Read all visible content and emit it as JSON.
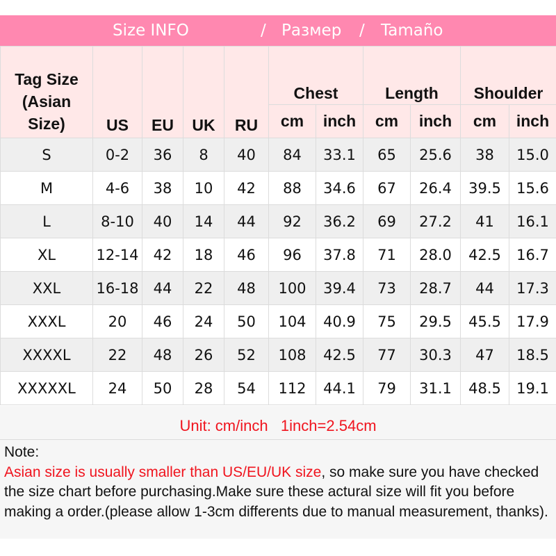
{
  "banner": {
    "title": "Size INFO",
    "sep1": "/",
    "ru": "Размер",
    "sep2": "/",
    "es": "Tamaño",
    "color": "#ff88b0"
  },
  "header": {
    "tag_size": [
      "Tag Size",
      "(Asian",
      "Size)"
    ],
    "us": "US",
    "eu": "EU",
    "uk": "UK",
    "ru": "RU",
    "chest": "Chest",
    "length": "Length",
    "shoulder": "Shoulder",
    "cm": "cm",
    "inch": "inch"
  },
  "rows": [
    [
      "S",
      "0-2",
      "36",
      "8",
      "40",
      "84",
      "33.1",
      "65",
      "25.6",
      "38",
      "15.0"
    ],
    [
      "M",
      "4-6",
      "38",
      "10",
      "42",
      "88",
      "34.6",
      "67",
      "26.4",
      "39.5",
      "15.6"
    ],
    [
      "L",
      "8-10",
      "40",
      "14",
      "44",
      "92",
      "36.2",
      "69",
      "27.2",
      "41",
      "16.1"
    ],
    [
      "XL",
      "12-14",
      "42",
      "18",
      "46",
      "96",
      "37.8",
      "71",
      "28.0",
      "42.5",
      "16.7"
    ],
    [
      "XXL",
      "16-18",
      "44",
      "22",
      "48",
      "100",
      "39.4",
      "73",
      "28.7",
      "44",
      "17.3"
    ],
    [
      "XXXL",
      "20",
      "46",
      "24",
      "50",
      "104",
      "40.9",
      "75",
      "29.5",
      "45.5",
      "17.9"
    ],
    [
      "XXXXL",
      "22",
      "48",
      "26",
      "52",
      "108",
      "42.5",
      "77",
      "30.3",
      "47",
      "18.5"
    ],
    [
      "XXXXXL",
      "24",
      "50",
      "28",
      "54",
      "112",
      "44.1",
      "79",
      "31.1",
      "48.5",
      "19.1"
    ]
  ],
  "unit_note": "Unit: cm/inch   1inch=2.54cm",
  "note": {
    "label": "Note:",
    "highlight": "Asian size is usually smaller than US/EU/UK size",
    "rest": ", so make sure you have checked the size chart before purchasing.Make sure these actural size will fit you before making a order.(please allow 1-3cm differents due to manual measurement, thanks)."
  }
}
